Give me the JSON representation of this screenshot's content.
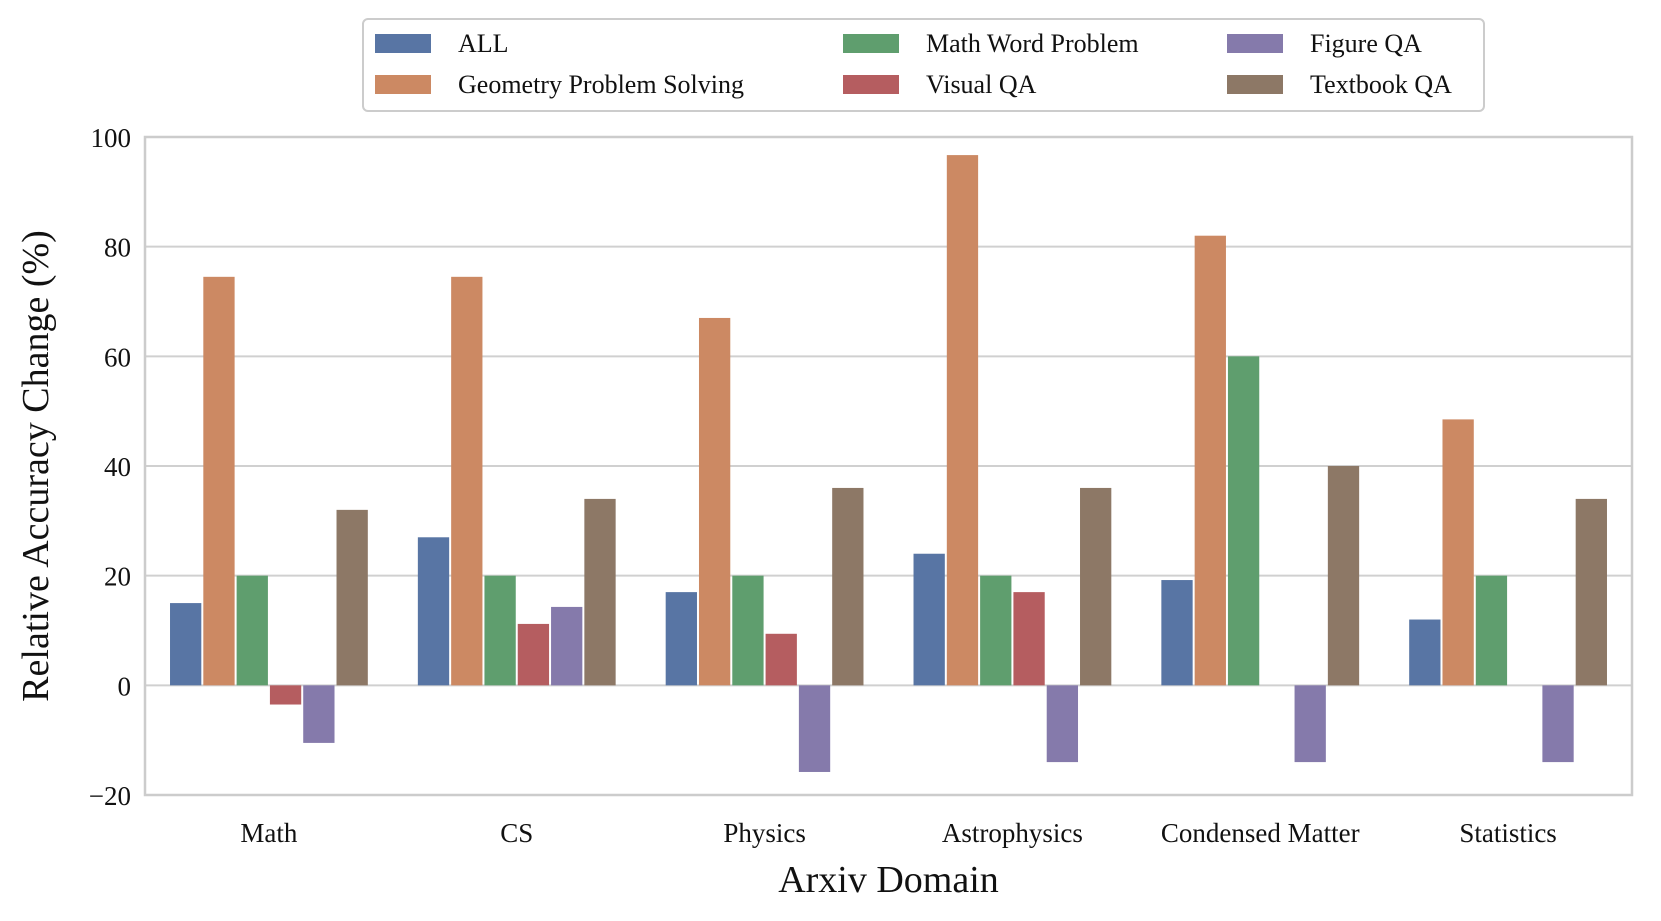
{
  "chart_data": {
    "type": "bar",
    "title": "",
    "xlabel": "Arxiv Domain",
    "ylabel": "Relative Accuracy Change (%)",
    "ylim": [
      -20,
      100
    ],
    "yticks": [
      -20,
      0,
      20,
      40,
      60,
      80,
      100
    ],
    "ytick_labels": [
      "−20",
      "0",
      "20",
      "40",
      "60",
      "80",
      "100"
    ],
    "grid": true,
    "legend_position": "top-center",
    "categories": [
      "Math",
      "CS",
      "Physics",
      "Astrophysics",
      "Condensed Matter",
      "Statistics"
    ],
    "series": [
      {
        "name": "ALL",
        "color": "#5875a4",
        "values": [
          15,
          27,
          17,
          24,
          19.2,
          12
        ]
      },
      {
        "name": "Geometry Problem Solving",
        "color": "#cc8963",
        "values": [
          74.5,
          74.5,
          67,
          96.7,
          82,
          48.5
        ]
      },
      {
        "name": "Math Word Problem",
        "color": "#5f9e6e",
        "values": [
          20,
          20,
          20,
          20,
          60,
          20
        ]
      },
      {
        "name": "Visual QA",
        "color": "#b55d60",
        "values": [
          -3.5,
          11.2,
          9.4,
          17,
          0,
          0
        ]
      },
      {
        "name": "Figure QA",
        "color": "#857aab",
        "values": [
          -10.5,
          14.3,
          -15.8,
          -14,
          -14,
          -14
        ]
      },
      {
        "name": "Textbook QA",
        "color": "#8d7866",
        "values": [
          32,
          34,
          36,
          36,
          40,
          34
        ]
      }
    ]
  }
}
